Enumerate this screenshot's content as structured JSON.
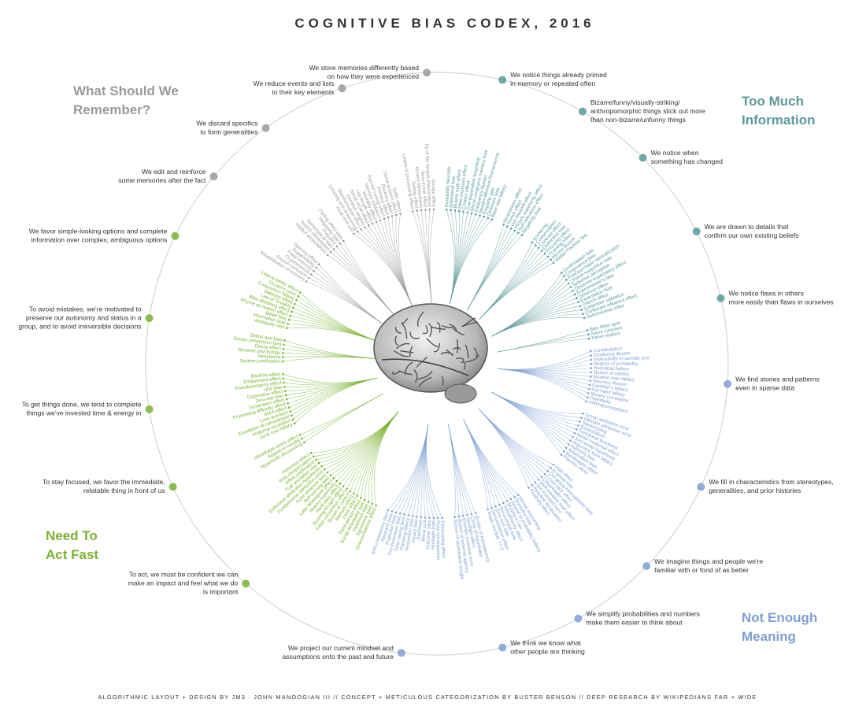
{
  "title": "COGNITIVE BIAS CODEX, 2016",
  "footer": "ALGORITHMIC LAYOUT + DESIGN BY JM3 · JOHN MANOOGIAN III // CONCEPT + METICULOUS CATEGORIZATION BY BUSTER BENSON // DEEP RESEARCH BY WIKIPEDIANS FAR + WIDE",
  "quadrants": [
    {
      "name": [
        "Too Much",
        "Information"
      ],
      "color": "#5b9a99",
      "groups": [
        {
          "label": [
            "We notice things already primed",
            "in memory or repeated often"
          ],
          "biases": [
            "Availability heuristic",
            "Attentional bias",
            "Illusory truth effect",
            "Mere exposure effect",
            "Context effect",
            "Cue-dependent forgetting",
            "Mood-congruent memory bias",
            "Frequency illusion",
            "Baader-Meinhof Phenomenon",
            "Empathy gap",
            "Omission bias",
            "Base rate fallacy"
          ]
        },
        {
          "label": [
            "Bizarre/funny/visually-striking/",
            "anthropomorphic things stick out more",
            "than non-bizarre/unfunny things"
          ],
          "biases": [
            "Bizarreness effect",
            "Humor effect",
            "Von Restorff effect",
            "Picture superiority effect",
            "Self-relevance effect",
            "Negativity bias"
          ]
        },
        {
          "label": [
            "We notice when",
            "something has changed"
          ],
          "biases": [
            "Anchoring",
            "Conservatism",
            "Contrast effect",
            "Distinction bias",
            "Focusing effect",
            "Framing effect",
            "Money illusion",
            "Weber-Fechner law"
          ]
        },
        {
          "label": [
            "We are drawn to details that",
            "confirm our own existing beliefs"
          ],
          "biases": [
            "Confirmation bias",
            "Congruence bias",
            "Post-purchase rationalization",
            "Choice-supportive bias",
            "Selective perception",
            "Observer-expectancy effect",
            "Experimenter's bias",
            "Observer effect",
            "Expectation bias",
            "Ostrich effect",
            "Subjective validation",
            "Continued influence effect",
            "Semmelweis reflex"
          ]
        },
        {
          "label": [
            "We notice flaws in others",
            "more easily than flaws in ourselves"
          ],
          "biases": [
            "Bias blind spot",
            "Naïve cynicism",
            "Naïve realism"
          ]
        }
      ]
    },
    {
      "name": [
        "Not Enough",
        "Meaning"
      ],
      "color": "#7f9fd3",
      "groups": [
        {
          "label": [
            "We find stories and patterns",
            "even in sparse data"
          ],
          "biases": [
            "Confabulation",
            "Clustering illusion",
            "Insensitivity to sample size",
            "Neglect of probability",
            "Anecdotal fallacy",
            "Illusion of validity",
            "Masked man fallacy",
            "Recency illusion",
            "Gambler's fallacy",
            "Hot-hand fallacy",
            "Illusory correlation",
            "Pareidolia",
            "Anthropomorphism"
          ]
        },
        {
          "label": [
            "We fill in characteristics from stereotypes,",
            "generalities, and prior histories"
          ],
          "biases": [
            "Group attribution error",
            "Ultimate attribution error",
            "Stereotyping",
            "Essentialism",
            "Functional fixedness",
            "Moral credential effect",
            "Just-world hypothesis",
            "Argument from fallacy",
            "Authority bias",
            "Automation bias",
            "Bandwagon effect",
            "Placebo effect"
          ]
        },
        {
          "label": [
            "We imagine things and people we're",
            "familiar with or fond of as better"
          ],
          "biases": [
            "Halo effect",
            "In-group bias",
            "Out-group homogeneity bias",
            "Cross-race effect",
            "Cheerleader effect",
            "Well-traveled road effect",
            "Not invented here",
            "Reactive devaluation",
            "Positivity effect"
          ]
        },
        {
          "label": [
            "We simplify probabilities and numbers",
            "make them easier to think about"
          ],
          "biases": [
            "Mental accounting",
            "Normalcy bias",
            "Appeal to probability fallacy",
            "Murphy's Law",
            "Subadditivity effect",
            "Survivorship bias",
            "Zero sum bias",
            "Denomination effect",
            "Magic number 7+-2"
          ]
        },
        {
          "label": [
            "We think we know what",
            "other people are thinking"
          ],
          "biases": [
            "Illusion of transparency",
            "Curse of knowledge",
            "Spotlight effect",
            "Extrinsic incentive error",
            "Illusion of external agency",
            "Illusion of asymmetric insight"
          ]
        },
        {
          "label": [
            "We project our current mindset and",
            "assumptions onto the past and future"
          ],
          "biases": [
            "Telescoping effect",
            "Rosy retrospection",
            "Hindsight bias",
            "Outcome bias",
            "Moral luck",
            "Declinism",
            "Impact bias",
            "Pessimism bias",
            "Planning fallacy",
            "Time-saving bias",
            "Pro-innovation bias",
            "Projection bias",
            "Restraint bias",
            "Self-consistency bias"
          ]
        }
      ]
    },
    {
      "name": [
        "Need To",
        "Act Fast"
      ],
      "color": "#7ab232",
      "groups": [
        {
          "label": [
            "To act, we must be confident we can",
            "make an impact and feel what we do",
            "is important"
          ],
          "biases": [
            "Overconfidence effect",
            "Egocentric bias",
            "Optimism bias",
            "Social desirability bias",
            "Third-person effect",
            "Forer effect",
            "Barnum effect",
            "Illusion of control",
            "False consensus effect",
            "Dunning-Kruger effect",
            "Hard-easy effect",
            "Illusory superiority",
            "Lake Wobegone effect",
            "Self-serving bias",
            "Actor-observer bias",
            "Fundamental attribution error",
            "Defensive attribution hypothesis",
            "Trait ascription bias",
            "Effort justification",
            "Risk compensation",
            "Peltzman effect"
          ]
        },
        {
          "label": [
            "To stay focused, we favor the immediate,",
            "relatable thing in front of us"
          ],
          "biases": [
            "Hyperbolic discounting",
            "Appeal to novelty",
            "Identifiable victim effect"
          ]
        },
        {
          "label": [
            "To get things done, we tend to complete",
            "things we've invested time & energy in"
          ],
          "biases": [
            "Sunk cost fallacy",
            "Irrational escalation",
            "Escalation of commitment",
            "Loss aversion",
            "IKEA effect",
            "Processing difficulty effect",
            "Generation effect",
            "Zero-risk bias",
            "Disposition effect",
            "Unit bias",
            "Pseudocertainty effect",
            "Endowment effect",
            "Backfire effect"
          ]
        },
        {
          "label": [
            "To avoid mistakes, we're motivated to",
            "preserve our autonomy and status in a",
            "group, and to avoid irreversible decisions"
          ],
          "biases": [
            "System justification",
            "Reactance",
            "Reverse psychology",
            "Decoy effect",
            "Social comparison bias",
            "Status quo bias"
          ]
        },
        {
          "label": [
            "We favor simple-looking options and complete",
            "information over complex, ambiguous options"
          ],
          "biases": [
            "Ambiguity bias",
            "Information bias",
            "Belief bias",
            "Rhyme as reason effect",
            "Bike-shedding effect",
            "Law of Triviality",
            "Delmore effect",
            "Conjunction fallacy",
            "Occam's razor",
            "Less-is-better effect"
          ]
        }
      ]
    },
    {
      "name": [
        "What Should We",
        "Remember?"
      ],
      "color": "#9a9a9a",
      "groups": [
        {
          "label": [
            "We edit and reinforce",
            "some memories after the fact"
          ],
          "biases": [
            "Misattribution of memory",
            "Source confusion",
            "Cryptomnesia",
            "False memory",
            "Suggestibility",
            "Spacing effect"
          ]
        },
        {
          "label": [
            "We discard specifics",
            "to form generalities"
          ],
          "biases": [
            "Implicit associations",
            "Implicit stereotypes",
            "Stereotypical bias",
            "Prejudice",
            "Negativity bias",
            "Fading affect bias"
          ]
        },
        {
          "label": [
            "We reduce events and lists",
            "to their key elements"
          ],
          "biases": [
            "Peak-end rule",
            "Leveling and sharpening",
            "Misinformation effect",
            "Duration neglect",
            "Serial recall effect",
            "List-length effect",
            "Modality effect",
            "Memory inhibition",
            "Part-list cueing effect",
            "Primacy effect",
            "Recency effect",
            "Serial position effect",
            "Suffix effect"
          ]
        },
        {
          "label": [
            "We store memories differently based",
            "on how they were experienced"
          ],
          "biases": [
            "Levels of processing effect",
            "Testing effect",
            "Absent-mindedness",
            "Next-in-line effect",
            "Tip of the tongue phenomenon",
            "Google effect"
          ]
        }
      ]
    }
  ]
}
